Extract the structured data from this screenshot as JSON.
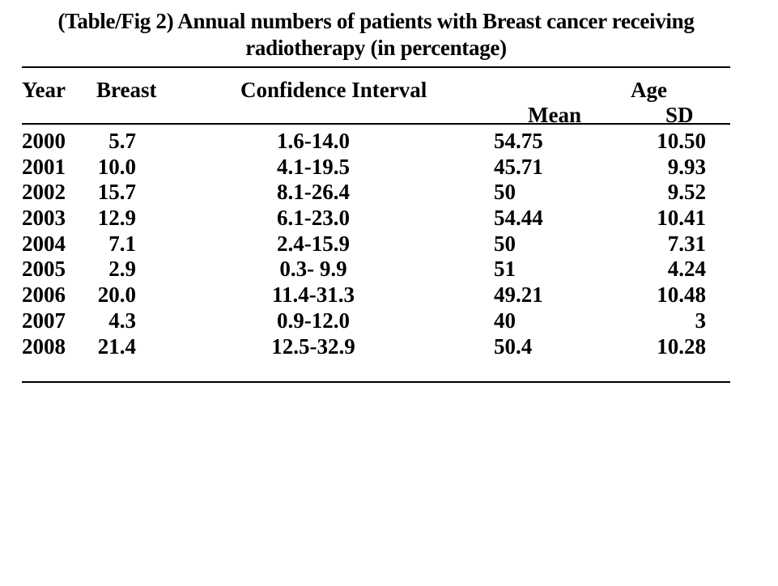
{
  "title": {
    "line1": "(Table/Fig 2) Annual numbers of patients with Breast cancer receiving",
    "line2": "radiotherapy (in percentage)"
  },
  "table": {
    "headers": {
      "year": "Year",
      "breast": "Breast",
      "confidence_interval": "Confidence Interval",
      "age": "Age",
      "mean": "Mean",
      "sd": "SD"
    },
    "rows": [
      {
        "year": "2000",
        "breast": "5.7",
        "ci": "1.6-14.0",
        "mean": "54.75",
        "sd": "10.50"
      },
      {
        "year": "2001",
        "breast": "10.0",
        "ci": "4.1-19.5",
        "mean": "45.71",
        "sd": "9.93"
      },
      {
        "year": "2002",
        "breast": "15.7",
        "ci": "8.1-26.4",
        "mean": "50",
        "sd": "9.52"
      },
      {
        "year": "2003",
        "breast": "12.9",
        "ci": "6.1-23.0",
        "mean": "54.44",
        "sd": "10.41"
      },
      {
        "year": "2004",
        "breast": "7.1",
        "ci": "2.4-15.9",
        "mean": "50",
        "sd": "7.31"
      },
      {
        "year": "2005",
        "breast": "2.9",
        "ci": "0.3- 9.9",
        "mean": "51",
        "sd": "4.24"
      },
      {
        "year": "2006",
        "breast": "20.0",
        "ci": "11.4-31.3",
        "mean": "49.21",
        "sd": "10.48"
      },
      {
        "year": "2007",
        "breast": "4.3",
        "ci": "0.9-12.0",
        "mean": "40",
        "sd": "3"
      },
      {
        "year": "2008",
        "breast": "21.4",
        "ci": "12.5-32.9",
        "mean": "50.4",
        "sd": "10.28"
      }
    ]
  },
  "chart_data": {
    "type": "table",
    "title": "(Table/Fig 2) Annual numbers of patients with Breast cancer receiving radiotherapy (in percentage)",
    "columns": [
      "Year",
      "Breast",
      "Confidence Interval",
      "Age Mean",
      "Age SD"
    ],
    "rows": [
      [
        "2000",
        5.7,
        "1.6-14.0",
        54.75,
        10.5
      ],
      [
        "2001",
        10.0,
        "4.1-19.5",
        45.71,
        9.93
      ],
      [
        "2002",
        15.7,
        "8.1-26.4",
        50,
        9.52
      ],
      [
        "2003",
        12.9,
        "6.1-23.0",
        54.44,
        10.41
      ],
      [
        "2004",
        7.1,
        "2.4-15.9",
        50,
        7.31
      ],
      [
        "2005",
        2.9,
        "0.3-9.9",
        51,
        4.24
      ],
      [
        "2006",
        20.0,
        "11.4-31.3",
        49.21,
        10.48
      ],
      [
        "2007",
        4.3,
        "0.9-12.0",
        40,
        3
      ],
      [
        "2008",
        21.4,
        "12.5-32.9",
        50.4,
        10.28
      ]
    ],
    "notes": "Breast column values are percentages; Age split into Mean and SD sub-columns",
    "colors": {
      "text": "#000000",
      "background": "#ffffff",
      "rule": "#000000"
    }
  }
}
